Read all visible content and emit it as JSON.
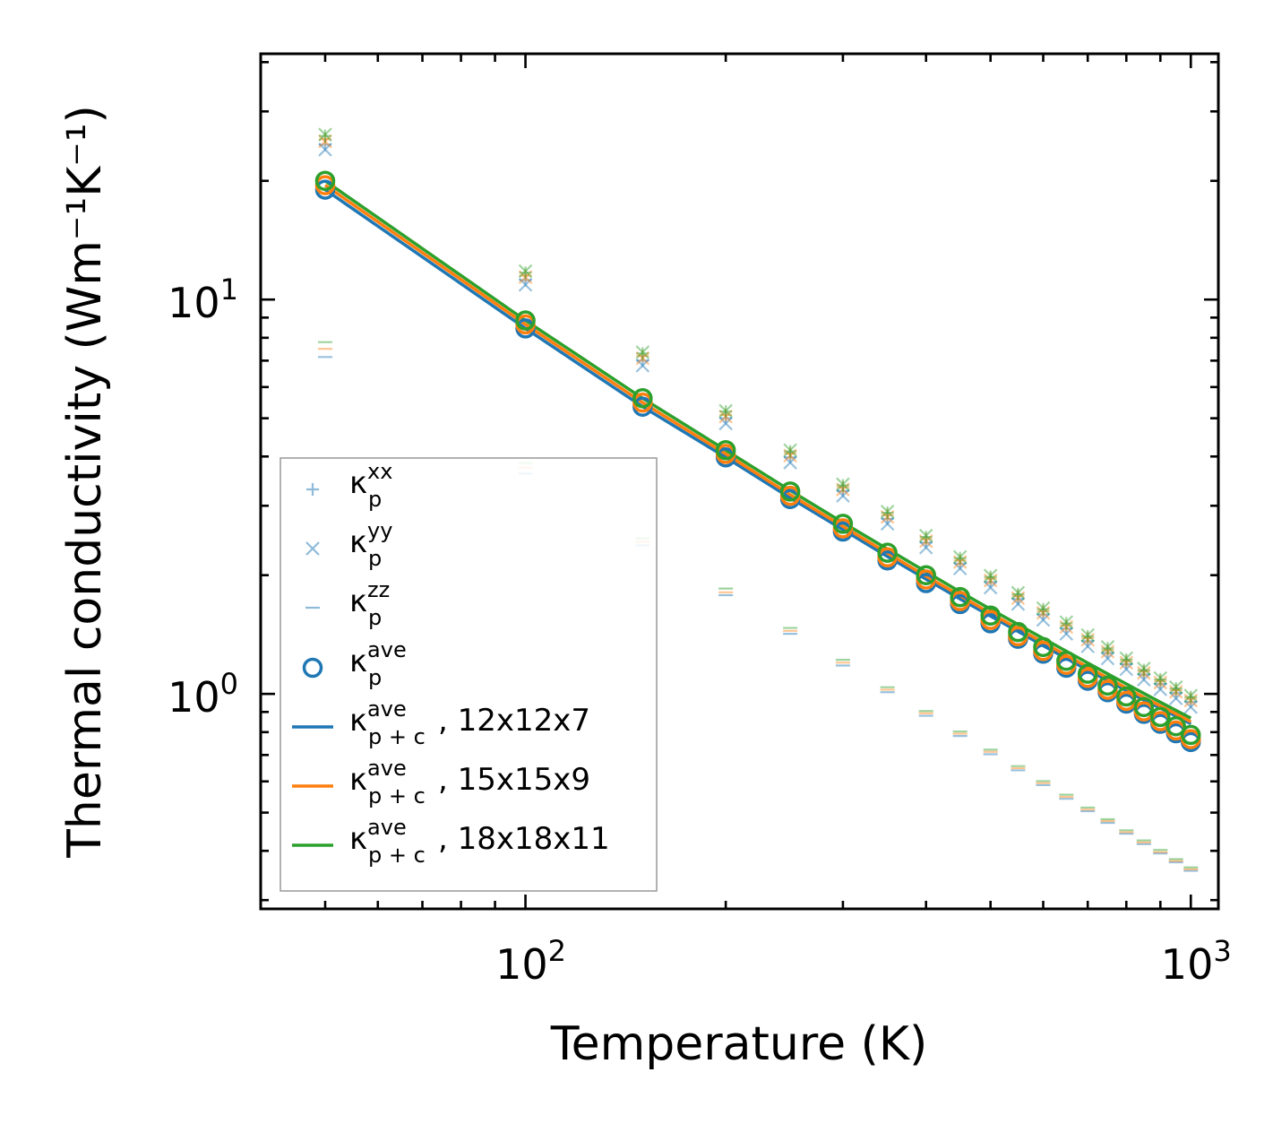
{
  "chart_data": {
    "type": "scatter",
    "title": "",
    "xlabel": "Temperature (K)",
    "ylabel": "Thermal conductivity (Wm⁻¹K⁻¹)",
    "xscale": "log",
    "yscale": "log",
    "xlim": [
      40,
      1100
    ],
    "ylim": [
      0.285,
      42
    ],
    "x_ticks": [
      {
        "base": "10",
        "exp": "2",
        "value": 100
      },
      {
        "base": "10",
        "exp": "3",
        "value": 1000
      }
    ],
    "y_ticks": [
      {
        "base": "10",
        "exp": "0",
        "value": 1
      },
      {
        "base": "10",
        "exp": "1",
        "value": 10
      }
    ],
    "temperatures": [
      50,
      100,
      150,
      200,
      250,
      300,
      350,
      400,
      450,
      500,
      550,
      600,
      650,
      700,
      750,
      800,
      850,
      900,
      950,
      1000
    ],
    "colors": {
      "blue": "#1f77b4",
      "orange": "#ff7f0e",
      "green": "#2ca02c"
    },
    "series": [
      {
        "name": "12x12x7",
        "color": "#1f77b4",
        "kxx": [
          24.7,
          11.2,
          7.0,
          5.0,
          3.98,
          3.27,
          2.78,
          2.42,
          2.14,
          1.92,
          1.74,
          1.59,
          1.465,
          1.36,
          1.27,
          1.19,
          1.12,
          1.06,
          1.005,
          0.955
        ],
        "kyy": [
          24.0,
          10.9,
          6.8,
          4.85,
          3.86,
          3.18,
          2.7,
          2.35,
          2.08,
          1.86,
          1.69,
          1.54,
          1.42,
          1.32,
          1.23,
          1.155,
          1.087,
          1.027,
          0.974,
          0.926
        ],
        "kzz": [
          7.15,
          3.62,
          2.38,
          1.78,
          1.42,
          1.18,
          1.01,
          0.88,
          0.782,
          0.703,
          0.64,
          0.587,
          0.542,
          0.504,
          0.471,
          0.442,
          0.416,
          0.394,
          0.374,
          0.356
        ],
        "kave": [
          19.0,
          8.45,
          5.35,
          3.98,
          3.12,
          2.58,
          2.18,
          1.91,
          1.69,
          1.51,
          1.38,
          1.265,
          1.165,
          1.08,
          1.01,
          0.945,
          0.89,
          0.84,
          0.795,
          0.755
        ],
        "kpc": [
          19.0,
          8.45,
          5.35,
          3.98,
          3.14,
          2.61,
          2.23,
          1.955,
          1.74,
          1.575,
          1.44,
          1.325,
          1.23,
          1.15,
          1.08,
          1.02,
          0.965,
          0.92,
          0.878,
          0.84
        ],
        "legend": {
          "base": "κ",
          "sup": "ave",
          "sub": "p + c",
          "label": ", 12x12x7"
        }
      },
      {
        "name": "15x15x9",
        "color": "#ff7f0e",
        "kxx": [
          25.5,
          11.5,
          7.2,
          5.1,
          4.07,
          3.34,
          2.84,
          2.47,
          2.18,
          1.96,
          1.77,
          1.62,
          1.49,
          1.385,
          1.29,
          1.21,
          1.14,
          1.078,
          1.022,
          0.972
        ],
        "kyy": [
          25.2,
          11.4,
          7.1,
          5.05,
          4.02,
          3.3,
          2.81,
          2.44,
          2.16,
          1.94,
          1.75,
          1.605,
          1.478,
          1.372,
          1.28,
          1.2,
          1.13,
          1.068,
          1.012,
          0.962
        ],
        "kzz": [
          7.5,
          3.75,
          2.43,
          1.81,
          1.445,
          1.2,
          1.025,
          0.893,
          0.793,
          0.713,
          0.648,
          0.594,
          0.548,
          0.509,
          0.476,
          0.446,
          0.42,
          0.397,
          0.377,
          0.359
        ],
        "kave": [
          19.5,
          8.65,
          5.48,
          4.06,
          3.18,
          2.63,
          2.22,
          1.95,
          1.72,
          1.54,
          1.4,
          1.285,
          1.185,
          1.098,
          1.025,
          0.96,
          0.903,
          0.853,
          0.808,
          0.768
        ],
        "kpc": [
          19.5,
          8.65,
          5.48,
          4.06,
          3.2,
          2.66,
          2.275,
          1.99,
          1.775,
          1.6,
          1.465,
          1.35,
          1.253,
          1.17,
          1.098,
          1.035,
          0.98,
          0.932,
          0.89,
          0.85
        ],
        "legend": {
          "base": "κ",
          "sup": "ave",
          "sub": "p + c",
          "label": ", 15x15x9"
        }
      },
      {
        "name": "18x18x11",
        "color": "#2ca02c",
        "kxx": [
          26.0,
          11.7,
          7.3,
          5.2,
          4.12,
          3.38,
          2.88,
          2.5,
          2.21,
          1.98,
          1.79,
          1.64,
          1.51,
          1.4,
          1.305,
          1.222,
          1.15,
          1.088,
          1.032,
          0.982
        ],
        "kyy": [
          26.2,
          11.8,
          7.35,
          5.22,
          4.15,
          3.4,
          2.9,
          2.52,
          2.225,
          1.995,
          1.805,
          1.65,
          1.52,
          1.41,
          1.315,
          1.232,
          1.16,
          1.097,
          1.04,
          0.99
        ],
        "kzz": [
          7.8,
          3.85,
          2.48,
          1.85,
          1.47,
          1.22,
          1.04,
          0.905,
          0.803,
          0.722,
          0.656,
          0.601,
          0.555,
          0.515,
          0.481,
          0.451,
          0.425,
          0.402,
          0.381,
          0.363
        ],
        "kave": [
          20.0,
          8.85,
          5.62,
          4.15,
          3.26,
          2.7,
          2.28,
          2.0,
          1.76,
          1.58,
          1.435,
          1.315,
          1.213,
          1.125,
          1.05,
          0.985,
          0.926,
          0.874,
          0.828,
          0.787
        ],
        "kpc": [
          20.0,
          8.85,
          5.62,
          4.15,
          3.28,
          2.72,
          2.33,
          2.04,
          1.815,
          1.64,
          1.5,
          1.382,
          1.283,
          1.198,
          1.124,
          1.06,
          1.003,
          0.953,
          0.908,
          0.868
        ],
        "legend": {
          "base": "κ",
          "sup": "ave",
          "sub": "p + c",
          "label": ", 18x18x11"
        }
      }
    ],
    "marker_legend": [
      {
        "marker": "plus",
        "base": "κ",
        "sup": "xx",
        "sub": "p"
      },
      {
        "marker": "x",
        "base": "κ",
        "sup": "yy",
        "sub": "p"
      },
      {
        "marker": "dash",
        "base": "κ",
        "sup": "zz",
        "sub": "p"
      },
      {
        "marker": "circle",
        "base": "κ",
        "sup": "ave",
        "sub": "p"
      }
    ],
    "legend_position": "lower-left"
  }
}
